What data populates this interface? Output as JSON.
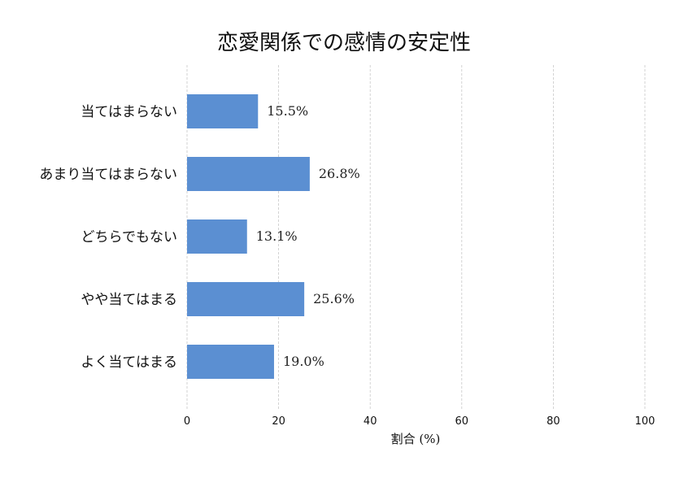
{
  "chart_data": {
    "type": "bar",
    "orientation": "horizontal",
    "title": "恋愛関係での感情の安定性",
    "xlabel": "割合 (%)",
    "ylabel": "",
    "xlim": [
      0,
      100
    ],
    "xticks": [
      0,
      20,
      40,
      60,
      80,
      100
    ],
    "grid": "vertical-dashed",
    "bar_color": "#5b8fd2",
    "categories": [
      "当てはまらない",
      "あまり当てはまらない",
      "どちらでもない",
      "やや当てはまる",
      "よく当てはまる"
    ],
    "values": [
      15.5,
      26.8,
      13.1,
      25.6,
      19.0
    ],
    "value_labels": [
      "15.5%",
      "26.8%",
      "13.1%",
      "25.6%",
      "19.0%"
    ]
  }
}
